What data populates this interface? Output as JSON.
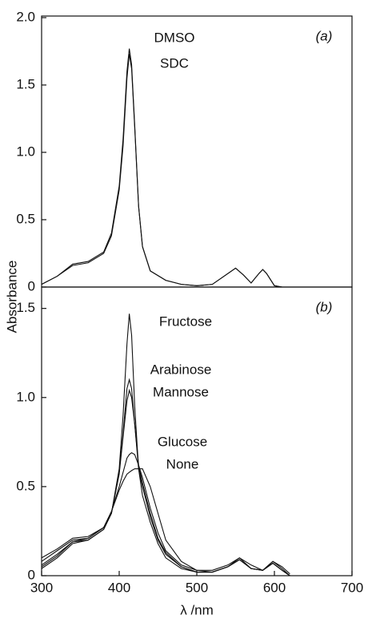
{
  "chart_data": [
    {
      "type": "line",
      "ylabel": "Absorbance",
      "panel_label": "(a)",
      "annotations": [
        "DMSO",
        "SDC"
      ],
      "xlim": [
        300,
        700
      ],
      "ylim": [
        0,
        2.0
      ],
      "yticks": [
        0,
        0.5,
        {
          "value": 1,
          "label": "1.0"
        },
        1.5,
        {
          "value": 2,
          "label": "2.0"
        }
      ],
      "x": [
        300,
        320,
        340,
        360,
        380,
        390,
        400,
        405,
        410,
        413,
        416,
        420,
        425,
        430,
        440,
        460,
        480,
        500,
        520,
        540,
        550,
        560,
        570,
        580,
        585,
        590,
        600,
        610,
        700
      ],
      "series": [
        {
          "name": "DMSO",
          "color": "#111111",
          "values": [
            0.02,
            0.08,
            0.17,
            0.19,
            0.26,
            0.4,
            0.75,
            1.1,
            1.6,
            1.77,
            1.65,
            1.2,
            0.6,
            0.3,
            0.12,
            0.05,
            0.02,
            0.01,
            0.02,
            0.1,
            0.14,
            0.09,
            0.03,
            0.1,
            0.13,
            0.1,
            0.01,
            0.0,
            0.0
          ]
        },
        {
          "name": "SDC",
          "color": "#111111",
          "values": [
            0.02,
            0.08,
            0.16,
            0.18,
            0.25,
            0.38,
            0.72,
            1.05,
            1.55,
            1.73,
            1.62,
            1.18,
            0.6,
            0.3,
            0.12,
            0.05,
            0.02,
            0.01,
            0.02,
            0.1,
            0.14,
            0.09,
            0.03,
            0.1,
            0.13,
            0.1,
            0.01,
            0.0,
            0.0
          ]
        }
      ]
    },
    {
      "type": "line",
      "xlabel": "λ /nm",
      "panel_label": "(b)",
      "annotations": [
        "Fructose",
        "Arabinose",
        "Mannose",
        "Glucose",
        "None"
      ],
      "xlim": [
        300,
        700
      ],
      "ylim": [
        0,
        1.62
      ],
      "xticks": [
        300,
        400,
        500,
        600,
        700
      ],
      "yticks": [
        0,
        0.5,
        {
          "value": 1,
          "label": "1.0"
        },
        1.5
      ],
      "x": [
        300,
        320,
        340,
        360,
        380,
        390,
        400,
        405,
        410,
        413,
        416,
        420,
        425,
        430,
        440,
        450,
        460,
        480,
        500,
        520,
        540,
        555,
        570,
        585,
        598,
        610,
        620
      ],
      "series": [
        {
          "name": "Fructose",
          "color": "#111111",
          "values": [
            0.04,
            0.1,
            0.18,
            0.2,
            0.26,
            0.35,
            0.6,
            0.9,
            1.3,
            1.47,
            1.35,
            0.95,
            0.6,
            0.45,
            0.3,
            0.18,
            0.1,
            0.04,
            0.02,
            0.02,
            0.05,
            0.09,
            0.04,
            0.03,
            0.07,
            0.03,
            0.0
          ]
        },
        {
          "name": "Arabinose",
          "color": "#111111",
          "values": [
            0.05,
            0.11,
            0.19,
            0.2,
            0.26,
            0.35,
            0.58,
            0.8,
            1.05,
            1.1,
            1.05,
            0.85,
            0.6,
            0.5,
            0.33,
            0.2,
            0.12,
            0.05,
            0.02,
            0.02,
            0.05,
            0.09,
            0.04,
            0.03,
            0.07,
            0.03,
            0.0
          ]
        },
        {
          "name": "Mannose",
          "color": "#111111",
          "values": [
            0.06,
            0.12,
            0.19,
            0.21,
            0.27,
            0.35,
            0.57,
            0.78,
            0.98,
            1.04,
            1.0,
            0.85,
            0.62,
            0.52,
            0.35,
            0.21,
            0.13,
            0.05,
            0.02,
            0.02,
            0.05,
            0.1,
            0.04,
            0.03,
            0.07,
            0.03,
            0.0
          ]
        },
        {
          "name": "Glucose",
          "color": "#111111",
          "values": [
            0.08,
            0.14,
            0.2,
            0.21,
            0.27,
            0.36,
            0.5,
            0.58,
            0.66,
            0.68,
            0.69,
            0.68,
            0.62,
            0.55,
            0.38,
            0.24,
            0.14,
            0.06,
            0.03,
            0.02,
            0.05,
            0.09,
            0.04,
            0.03,
            0.08,
            0.04,
            0.0
          ]
        },
        {
          "name": "None",
          "color": "#111111",
          "values": [
            0.1,
            0.15,
            0.21,
            0.22,
            0.27,
            0.36,
            0.48,
            0.53,
            0.57,
            0.58,
            0.59,
            0.6,
            0.6,
            0.6,
            0.5,
            0.35,
            0.2,
            0.08,
            0.03,
            0.03,
            0.06,
            0.1,
            0.06,
            0.03,
            0.08,
            0.05,
            0.01
          ]
        }
      ]
    }
  ]
}
